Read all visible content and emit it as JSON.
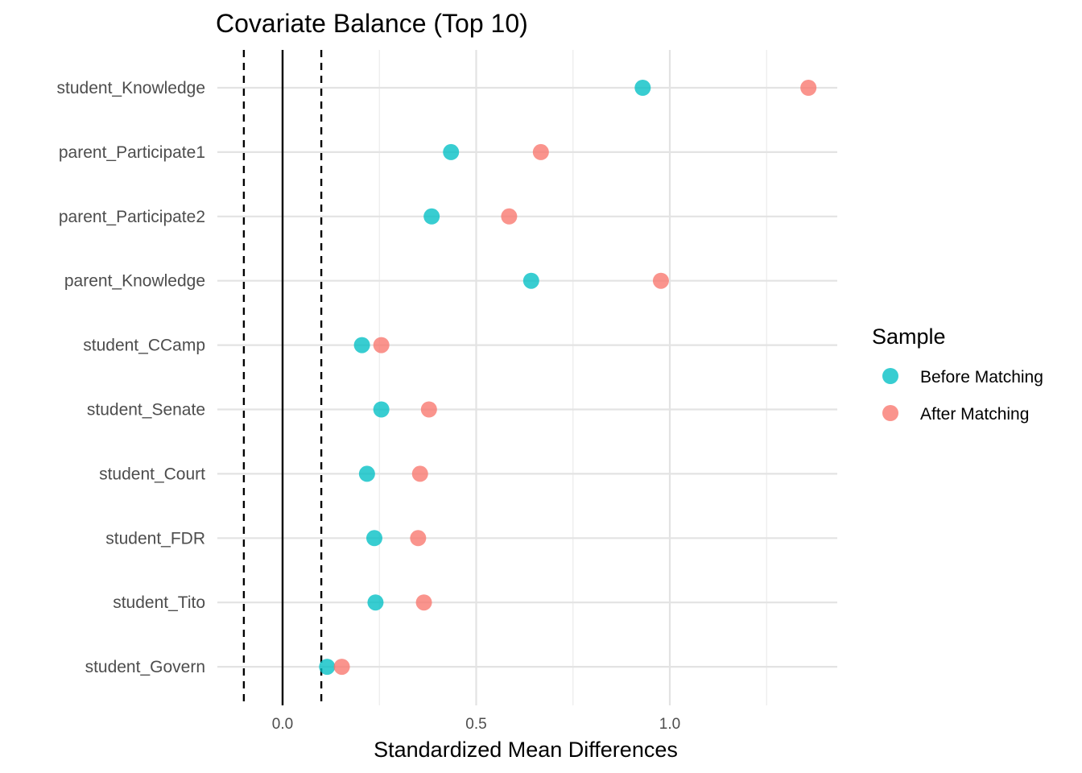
{
  "chart_data": {
    "type": "scatter",
    "title": "Covariate Balance (Top 10)",
    "xlabel": "Standardized Mean Differences",
    "ylabel": "",
    "xlim": [
      -0.17,
      1.43
    ],
    "x_ticks": [
      0.0,
      0.5,
      1.0
    ],
    "x_tick_labels": [
      "0.0",
      "0.5",
      "1.0"
    ],
    "x_minor_grid": [
      0.25,
      0.75,
      1.25
    ],
    "reference_lines": [
      {
        "x": 0.0,
        "style": "solid"
      },
      {
        "x": -0.1,
        "style": "dashed"
      },
      {
        "x": 0.1,
        "style": "dashed"
      }
    ],
    "categories": [
      "student_Knowledge",
      "parent_Participate1",
      "parent_Participate2",
      "parent_Knowledge",
      "student_CCamp",
      "student_Senate",
      "student_Court",
      "student_FDR",
      "student_Tito",
      "student_Govern"
    ],
    "series": [
      {
        "name": "Before Matching",
        "color": "#00BFC4",
        "values": [
          0.93,
          0.435,
          0.385,
          0.642,
          0.205,
          0.255,
          0.218,
          0.237,
          0.24,
          0.115
        ]
      },
      {
        "name": "After Matching",
        "color": "#F8766D",
        "values": [
          1.358,
          0.667,
          0.585,
          0.977,
          0.255,
          0.378,
          0.355,
          0.35,
          0.365,
          0.153
        ]
      }
    ],
    "grid": true,
    "legend": {
      "title": "Sample",
      "position": "right"
    }
  }
}
